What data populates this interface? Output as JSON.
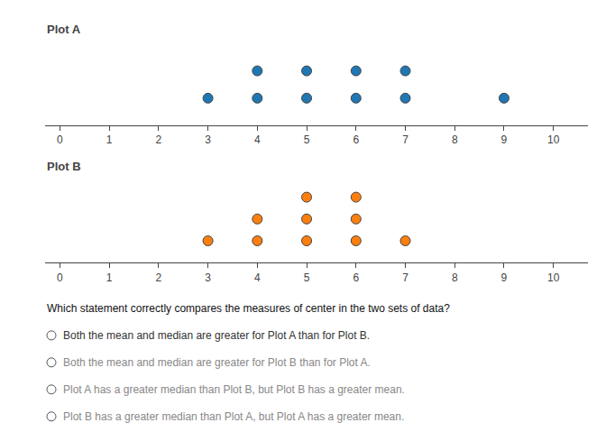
{
  "chart_data": [
    {
      "type": "dot",
      "title": "Plot A",
      "x": [
        3,
        4,
        5,
        6,
        7,
        4,
        5,
        6,
        7,
        9
      ],
      "values": [
        1,
        1,
        1,
        1,
        1,
        2,
        2,
        2,
        2,
        1
      ],
      "xlim": [
        -0.3,
        10.7
      ],
      "xticks": [
        0,
        1,
        2,
        3,
        4,
        5,
        6,
        7,
        8,
        9,
        10
      ],
      "ylim": [
        0,
        3.2
      ],
      "grid": false,
      "tick_labels": "x"
    },
    {
      "type": "dot",
      "title": "Plot B",
      "x": [
        3,
        4,
        5,
        6,
        7,
        4,
        5,
        6,
        5,
        6
      ],
      "values": [
        1,
        1,
        1,
        1,
        1,
        2,
        2,
        2,
        3,
        3
      ],
      "xlim": [
        -0.3,
        10.7
      ],
      "xticks": [
        0,
        1,
        2,
        3,
        4,
        5,
        6,
        7,
        8,
        9,
        10
      ],
      "ylim": [
        0,
        4.0
      ],
      "grid": false,
      "tick_labels": "x",
      "annotations": [
        "Which statement correctly compares the measures of center in the two sets of data?",
        "Both the mean and median are greater for Plot A than for Plot B.",
        "Both the mean and median are greater for Plot B than for Plot A.",
        "Plot A has a greater median than Plot B, but Plot B has a greater mean.",
        "Plot B has a greater median than Plot A, but Plot A has a greater mean."
      ]
    }
  ]
}
